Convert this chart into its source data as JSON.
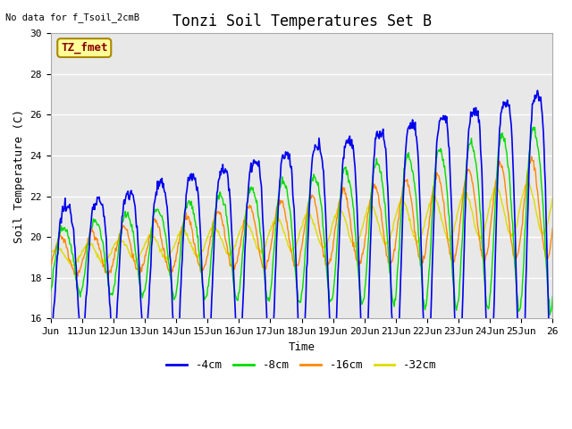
{
  "title": "Tonzi Soil Temperatures Set B",
  "no_data_label": "No data for f_Tsoil_2cmB",
  "annotation_label": "TZ_fmet",
  "xlabel": "Time",
  "ylabel": "Soil Temperature (C)",
  "ylim": [
    16,
    30
  ],
  "yticks": [
    16,
    18,
    20,
    22,
    24,
    26,
    28,
    30
  ],
  "xtick_labels": [
    "Jun",
    "11Jun",
    "12Jun",
    "13Jun",
    "14Jun",
    "15Jun",
    "16Jun",
    "17Jun",
    "18Jun",
    "19Jun",
    "20Jun",
    "21Jun",
    "22Jun",
    "23Jun",
    "24Jun",
    "25Jun",
    "26"
  ],
  "legend_labels": [
    "-4cm",
    "-8cm",
    "-16cm",
    "-32cm"
  ],
  "legend_colors": [
    "#0000ee",
    "#00dd00",
    "#ff8800",
    "#dddd00"
  ],
  "line_colors": {
    "4cm": "#0000ee",
    "8cm": "#00dd00",
    "16cm": "#ff8800",
    "32cm": "#dddd00"
  },
  "fig_bg_color": "#ffffff",
  "plot_bg_color": "#e8e8e8",
  "grid_color": "#ffffff",
  "title_fontsize": 12,
  "axis_label_fontsize": 9,
  "tick_fontsize": 8,
  "annotation_box_color": "#ffff99",
  "annotation_text_color": "#880000",
  "annotation_edge_color": "#aa8800"
}
